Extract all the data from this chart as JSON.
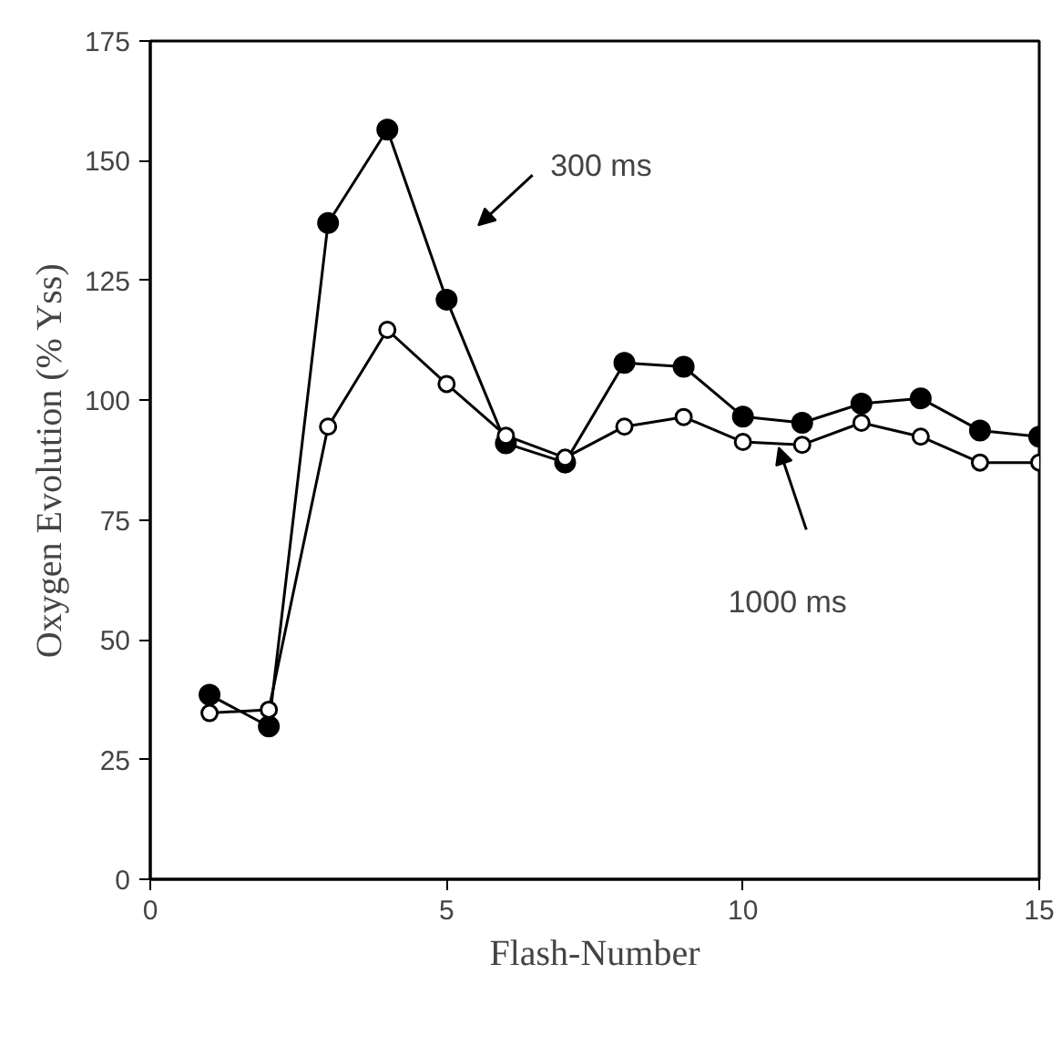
{
  "chart_data": {
    "type": "line",
    "xlabel": "Flash-Number",
    "ylabel": "Oxygen Evolution (% Yss)",
    "x": [
      1,
      2,
      3,
      4,
      5,
      6,
      7,
      8,
      9,
      10,
      11,
      12,
      13,
      14,
      15
    ],
    "series": [
      {
        "color": "#000000",
        "marker": "circle",
        "values": [
          38.5,
          31.9,
          137,
          156.5,
          121,
          91,
          87,
          107.8,
          107,
          96.6,
          95.3,
          99.3,
          100.4,
          93.7,
          92.4
        ]
      },
      {
        "color": "#000000",
        "marker": "open_circle",
        "values": [
          34.7,
          35.4,
          94.5,
          114.7,
          103.4,
          92.6,
          88,
          94.5,
          96.5,
          91.3,
          90.7,
          95.3,
          92.4,
          87,
          87
        ]
      }
    ],
    "xlim": [
      0,
      15
    ],
    "xticks": [
      0,
      5,
      10,
      15
    ],
    "ylim": [
      0,
      175
    ],
    "yticks": [
      0,
      25,
      50,
      75,
      100,
      125,
      150,
      175
    ],
    "grid": false,
    "line_style": "solid",
    "annotations": [
      "300 ms",
      "1000 ms"
    ]
  }
}
